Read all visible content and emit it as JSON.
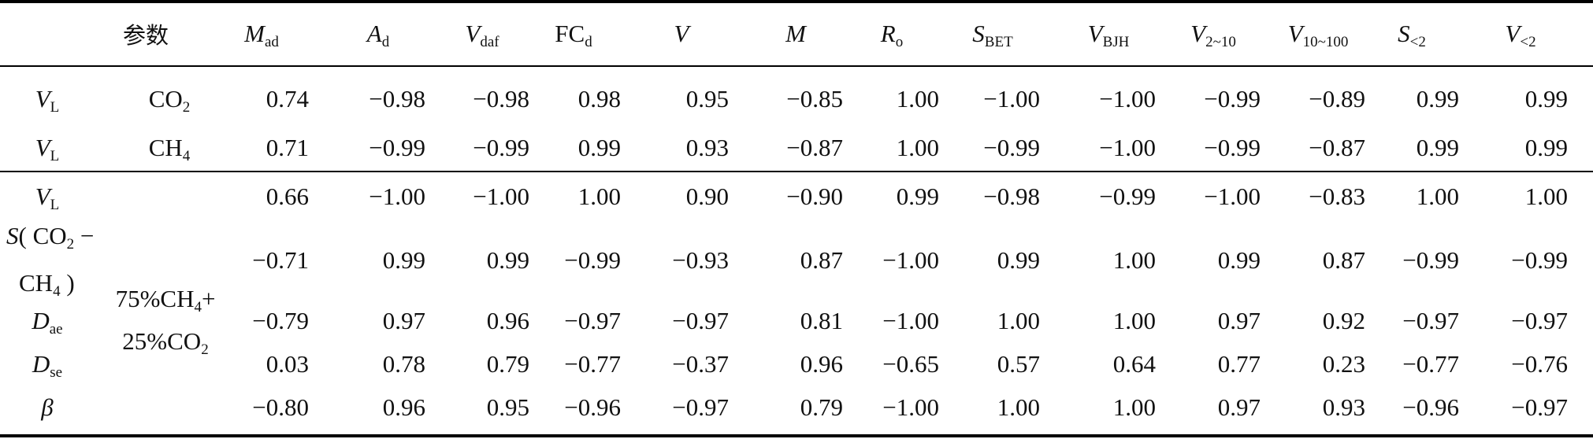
{
  "table": {
    "header": {
      "param": "参数",
      "cols": [
        {
          "base": "M",
          "sub": "ad",
          "italic": true
        },
        {
          "base": "A",
          "sub": "d",
          "italic": true
        },
        {
          "base": "V",
          "sub": "daf",
          "italic": true
        },
        {
          "base": "FC",
          "sub": "d",
          "italic": false
        },
        {
          "base": "V",
          "sub": "",
          "italic": true
        },
        {
          "base": "M",
          "sub": "",
          "italic": true
        },
        {
          "base": "R",
          "sub": "o",
          "italic": true
        },
        {
          "base": "S",
          "sub": "BET",
          "italic": true
        },
        {
          "base": "V",
          "sub": "BJH",
          "italic": true
        },
        {
          "base": "V",
          "sub": "2~10",
          "italic": true
        },
        {
          "base": "V",
          "sub": "10~100",
          "italic": true
        },
        {
          "base": "S",
          "sub": "<2",
          "italic": true
        },
        {
          "base": "V",
          "sub": "<2",
          "italic": true
        }
      ]
    },
    "group1": {
      "rows": [
        {
          "var": {
            "base": "V",
            "sub": "L"
          },
          "gas": {
            "base": "CO",
            "sub": "2"
          },
          "values": [
            "0.74",
            "−0.98",
            "−0.98",
            "0.98",
            "0.95",
            "−0.85",
            "1.00",
            "−1.00",
            "−1.00",
            "−0.99",
            "−0.89",
            "0.99",
            "0.99"
          ]
        },
        {
          "var": {
            "base": "V",
            "sub": "L"
          },
          "gas": {
            "base": "CH",
            "sub": "4"
          },
          "values": [
            "0.71",
            "−0.99",
            "−0.99",
            "0.99",
            "0.93",
            "−0.87",
            "1.00",
            "−0.99",
            "−1.00",
            "−0.99",
            "−0.87",
            "0.99",
            "0.99"
          ]
        }
      ]
    },
    "group2": {
      "mix_line1": {
        "pre": "75%CH",
        "sub": "4",
        "post": "+"
      },
      "mix_line2": {
        "pre": "25%CO",
        "sub": "2",
        "post": ""
      },
      "rows": [
        {
          "var_base": "V",
          "var_sub": "L",
          "values": [
            "0.66",
            "−1.00",
            "−1.00",
            "1.00",
            "0.90",
            "−0.90",
            "0.99",
            "−0.98",
            "−0.99",
            "−1.00",
            "−0.83",
            "1.00",
            "1.00"
          ]
        },
        {
          "var_line1": {
            "s": "S",
            "pre": "( CO",
            "sub": "2",
            "post": " −"
          },
          "var_line2": {
            "pre": "CH",
            "sub": "4",
            "post": " )"
          },
          "values": [
            "−0.71",
            "0.99",
            "0.99",
            "−0.99",
            "−0.93",
            "0.87",
            "−1.00",
            "0.99",
            "1.00",
            "0.99",
            "0.87",
            "−0.99",
            "−0.99"
          ]
        },
        {
          "var_base": "D",
          "var_sub": "ae",
          "values": [
            "−0.79",
            "0.97",
            "0.96",
            "−0.97",
            "−0.97",
            "0.81",
            "−1.00",
            "1.00",
            "1.00",
            "0.97",
            "0.92",
            "−0.97",
            "−0.97"
          ]
        },
        {
          "var_base": "D",
          "var_sub": "se",
          "values": [
            "0.03",
            "0.78",
            "0.79",
            "−0.77",
            "−0.37",
            "0.96",
            "−0.65",
            "0.57",
            "0.64",
            "0.77",
            "0.23",
            "−0.77",
            "−0.76"
          ]
        },
        {
          "var_base": "β",
          "var_sub": "",
          "values": [
            "−0.80",
            "0.96",
            "0.95",
            "−0.96",
            "−0.97",
            "0.79",
            "−1.00",
            "1.00",
            "1.00",
            "0.97",
            "0.93",
            "−0.96",
            "−0.97"
          ]
        }
      ]
    }
  }
}
